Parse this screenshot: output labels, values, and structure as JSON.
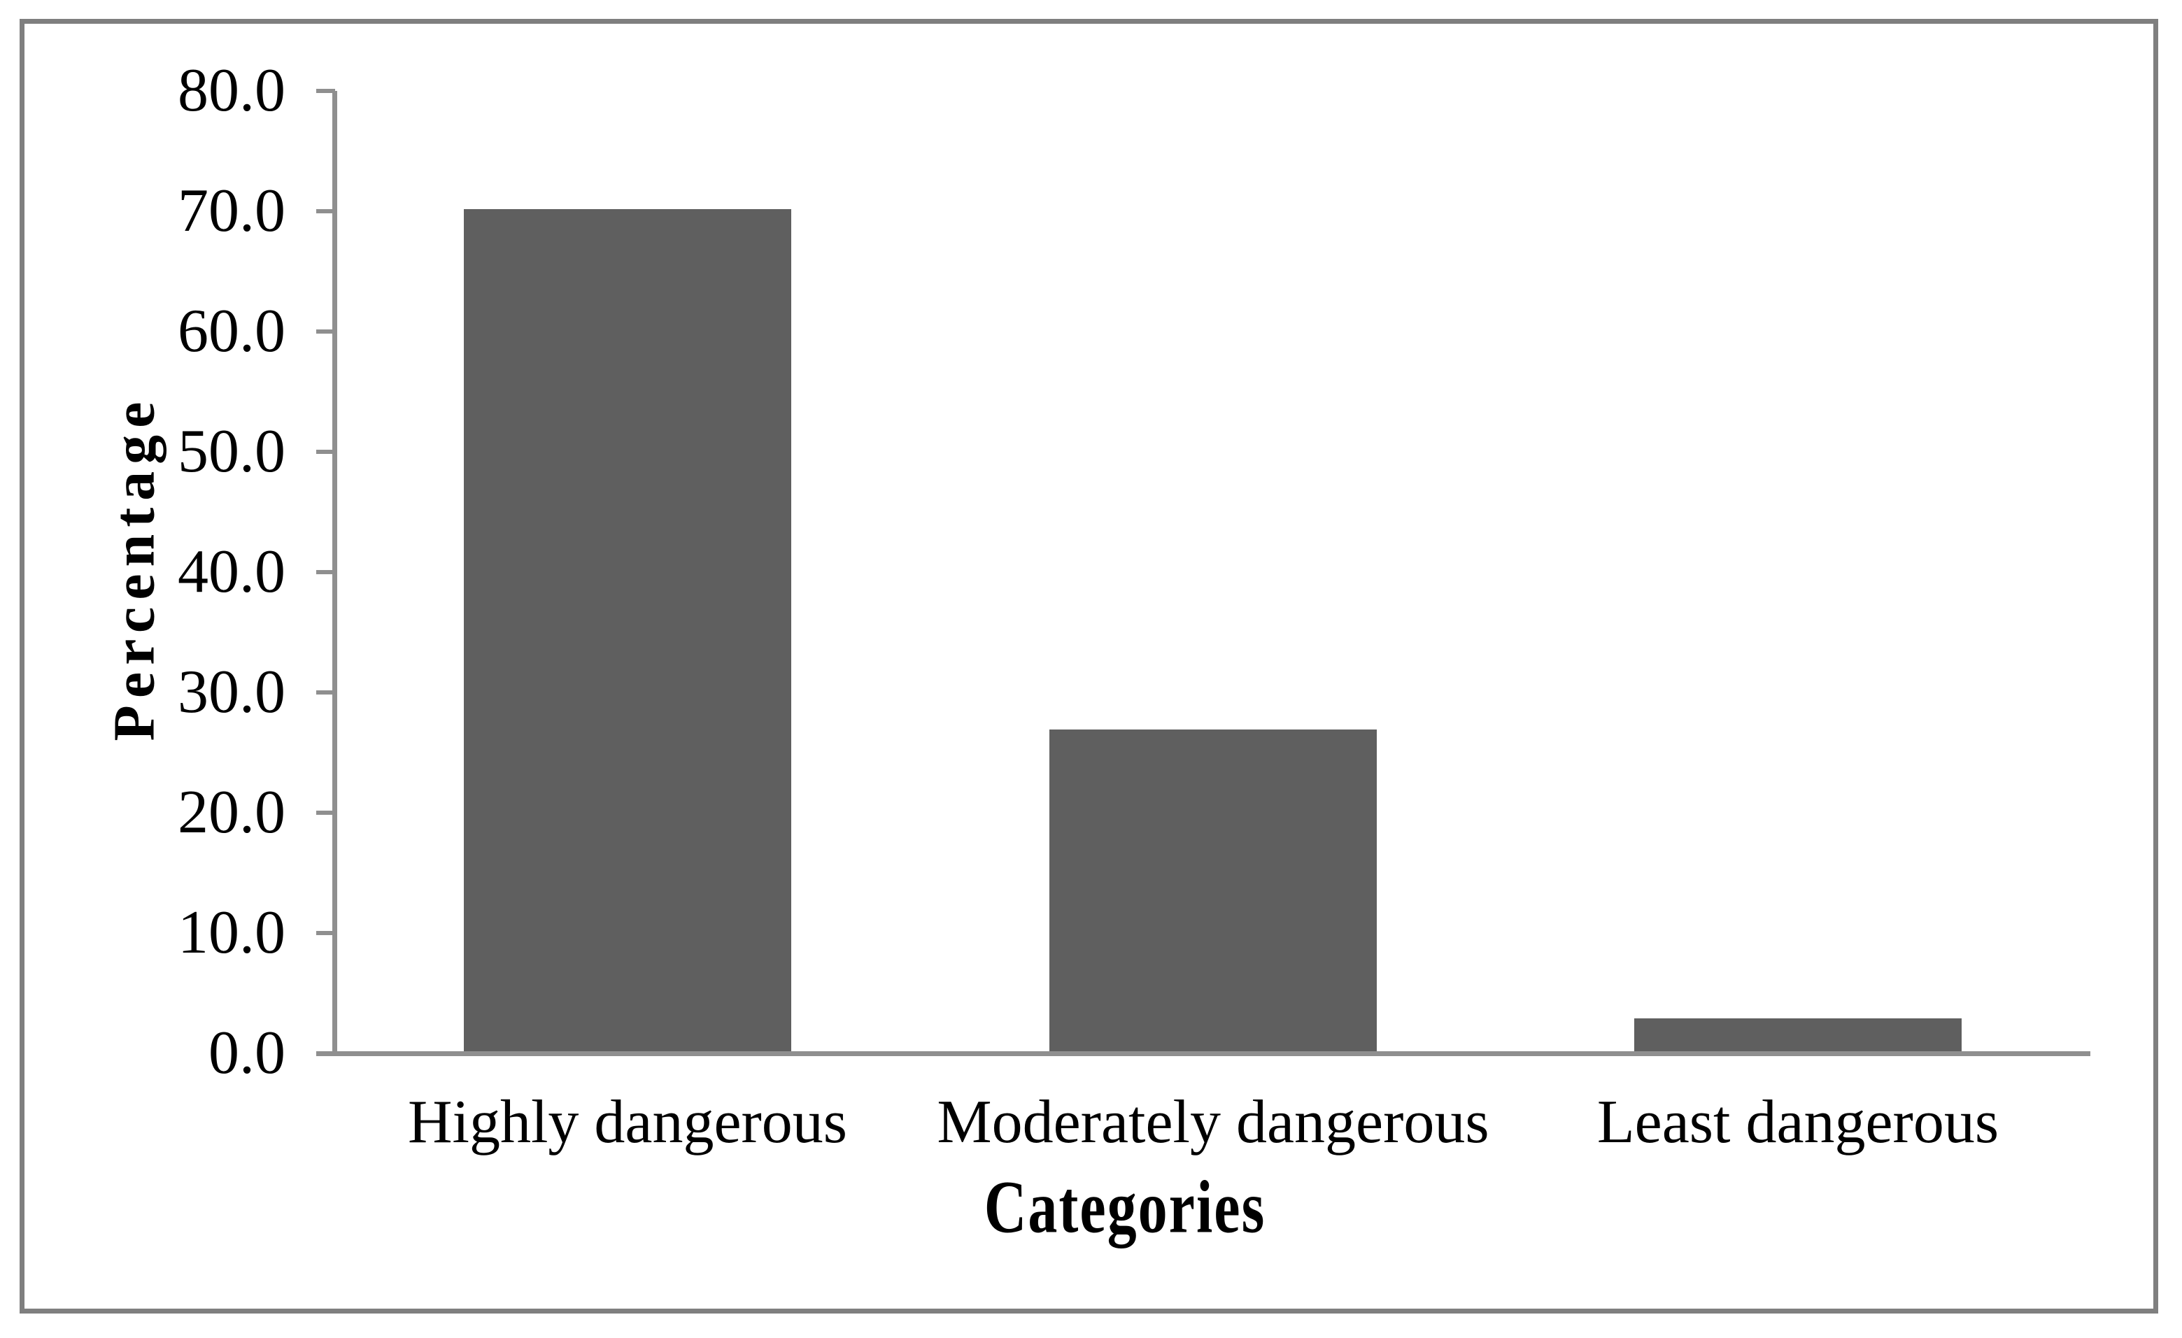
{
  "chart_data": {
    "type": "bar",
    "categories": [
      "Highly dangerous",
      "Moderately dangerous",
      "Least dangerous"
    ],
    "values": [
      70.2,
      26.9,
      2.9
    ],
    "title": "",
    "xlabel": "Categories",
    "ylabel": "Percentage",
    "ylim": [
      0,
      80
    ],
    "ytick_step": 10,
    "ytick_labels": [
      "80.0",
      "70.0",
      "60.0",
      "50.0",
      "40.0",
      "30.0",
      "20.0",
      "10.0",
      "0.0"
    ],
    "grid": "off",
    "legend": "none",
    "bar_color": "#5f5f5f",
    "axis_color": "#8f8f8f",
    "frame_color": "#7f7f7f",
    "text_color": "#000000"
  }
}
